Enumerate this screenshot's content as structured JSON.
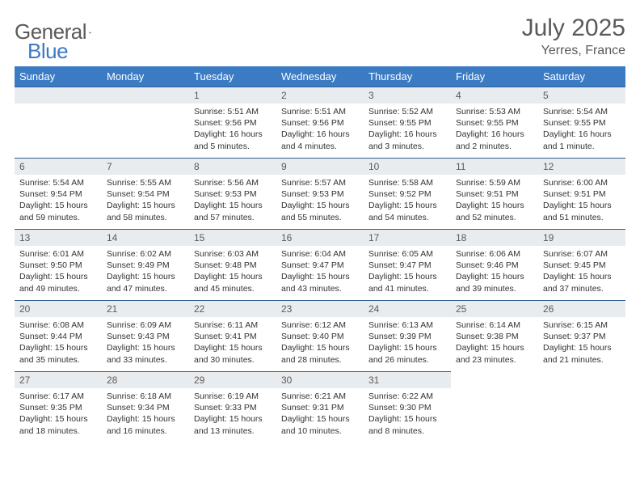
{
  "brand": {
    "name_gray": "General",
    "name_blue": "Blue"
  },
  "title": "July 2025",
  "location": "Yerres, France",
  "weekdays": [
    "Sunday",
    "Monday",
    "Tuesday",
    "Wednesday",
    "Thursday",
    "Friday",
    "Saturday"
  ],
  "colors": {
    "header_bg": "#3b7bc4",
    "header_text": "#ffffff",
    "daynum_bg": "#e9ecef",
    "daynum_border": "#2f5c8f",
    "body_text": "#333333",
    "title_text": "#5a5a5a"
  },
  "first_weekday_index": 2,
  "days": [
    {
      "n": 1,
      "sunrise": "5:51 AM",
      "sunset": "9:56 PM",
      "daylight": "16 hours and 5 minutes."
    },
    {
      "n": 2,
      "sunrise": "5:51 AM",
      "sunset": "9:56 PM",
      "daylight": "16 hours and 4 minutes."
    },
    {
      "n": 3,
      "sunrise": "5:52 AM",
      "sunset": "9:55 PM",
      "daylight": "16 hours and 3 minutes."
    },
    {
      "n": 4,
      "sunrise": "5:53 AM",
      "sunset": "9:55 PM",
      "daylight": "16 hours and 2 minutes."
    },
    {
      "n": 5,
      "sunrise": "5:54 AM",
      "sunset": "9:55 PM",
      "daylight": "16 hours and 1 minute."
    },
    {
      "n": 6,
      "sunrise": "5:54 AM",
      "sunset": "9:54 PM",
      "daylight": "15 hours and 59 minutes."
    },
    {
      "n": 7,
      "sunrise": "5:55 AM",
      "sunset": "9:54 PM",
      "daylight": "15 hours and 58 minutes."
    },
    {
      "n": 8,
      "sunrise": "5:56 AM",
      "sunset": "9:53 PM",
      "daylight": "15 hours and 57 minutes."
    },
    {
      "n": 9,
      "sunrise": "5:57 AM",
      "sunset": "9:53 PM",
      "daylight": "15 hours and 55 minutes."
    },
    {
      "n": 10,
      "sunrise": "5:58 AM",
      "sunset": "9:52 PM",
      "daylight": "15 hours and 54 minutes."
    },
    {
      "n": 11,
      "sunrise": "5:59 AM",
      "sunset": "9:51 PM",
      "daylight": "15 hours and 52 minutes."
    },
    {
      "n": 12,
      "sunrise": "6:00 AM",
      "sunset": "9:51 PM",
      "daylight": "15 hours and 51 minutes."
    },
    {
      "n": 13,
      "sunrise": "6:01 AM",
      "sunset": "9:50 PM",
      "daylight": "15 hours and 49 minutes."
    },
    {
      "n": 14,
      "sunrise": "6:02 AM",
      "sunset": "9:49 PM",
      "daylight": "15 hours and 47 minutes."
    },
    {
      "n": 15,
      "sunrise": "6:03 AM",
      "sunset": "9:48 PM",
      "daylight": "15 hours and 45 minutes."
    },
    {
      "n": 16,
      "sunrise": "6:04 AM",
      "sunset": "9:47 PM",
      "daylight": "15 hours and 43 minutes."
    },
    {
      "n": 17,
      "sunrise": "6:05 AM",
      "sunset": "9:47 PM",
      "daylight": "15 hours and 41 minutes."
    },
    {
      "n": 18,
      "sunrise": "6:06 AM",
      "sunset": "9:46 PM",
      "daylight": "15 hours and 39 minutes."
    },
    {
      "n": 19,
      "sunrise": "6:07 AM",
      "sunset": "9:45 PM",
      "daylight": "15 hours and 37 minutes."
    },
    {
      "n": 20,
      "sunrise": "6:08 AM",
      "sunset": "9:44 PM",
      "daylight": "15 hours and 35 minutes."
    },
    {
      "n": 21,
      "sunrise": "6:09 AM",
      "sunset": "9:43 PM",
      "daylight": "15 hours and 33 minutes."
    },
    {
      "n": 22,
      "sunrise": "6:11 AM",
      "sunset": "9:41 PM",
      "daylight": "15 hours and 30 minutes."
    },
    {
      "n": 23,
      "sunrise": "6:12 AM",
      "sunset": "9:40 PM",
      "daylight": "15 hours and 28 minutes."
    },
    {
      "n": 24,
      "sunrise": "6:13 AM",
      "sunset": "9:39 PM",
      "daylight": "15 hours and 26 minutes."
    },
    {
      "n": 25,
      "sunrise": "6:14 AM",
      "sunset": "9:38 PM",
      "daylight": "15 hours and 23 minutes."
    },
    {
      "n": 26,
      "sunrise": "6:15 AM",
      "sunset": "9:37 PM",
      "daylight": "15 hours and 21 minutes."
    },
    {
      "n": 27,
      "sunrise": "6:17 AM",
      "sunset": "9:35 PM",
      "daylight": "15 hours and 18 minutes."
    },
    {
      "n": 28,
      "sunrise": "6:18 AM",
      "sunset": "9:34 PM",
      "daylight": "15 hours and 16 minutes."
    },
    {
      "n": 29,
      "sunrise": "6:19 AM",
      "sunset": "9:33 PM",
      "daylight": "15 hours and 13 minutes."
    },
    {
      "n": 30,
      "sunrise": "6:21 AM",
      "sunset": "9:31 PM",
      "daylight": "15 hours and 10 minutes."
    },
    {
      "n": 31,
      "sunrise": "6:22 AM",
      "sunset": "9:30 PM",
      "daylight": "15 hours and 8 minutes."
    }
  ],
  "labels": {
    "sunrise": "Sunrise:",
    "sunset": "Sunset:",
    "daylight": "Daylight:"
  }
}
